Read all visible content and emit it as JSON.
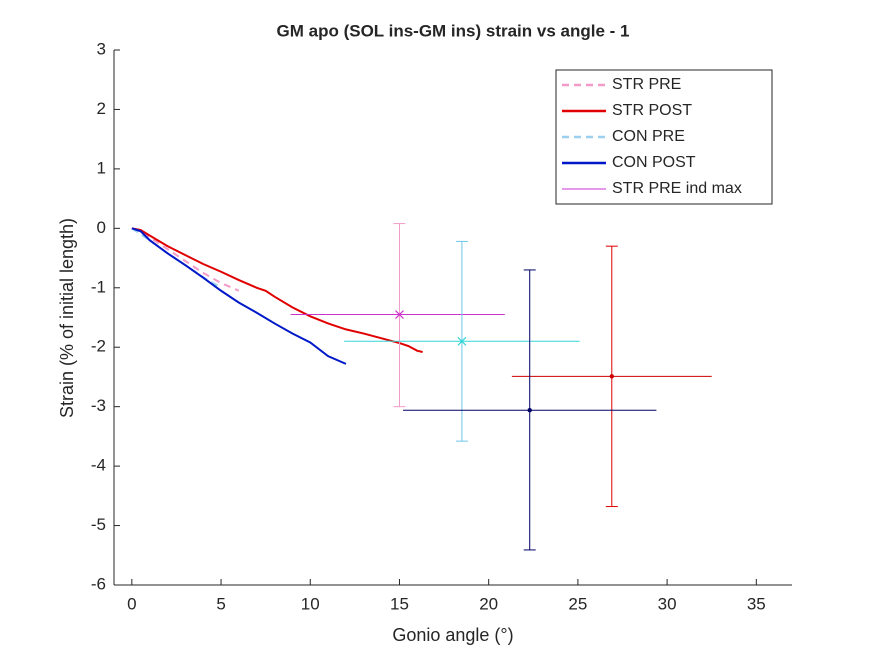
{
  "chart_data": {
    "type": "line",
    "title": "GM apo (SOL ins-GM ins) strain vs angle - 1",
    "xlabel": "Gonio angle (°)",
    "ylabel": "Strain (% of initial length)",
    "xlim": [
      -1,
      37
    ],
    "ylim": [
      -6,
      3
    ],
    "xticks": [
      0,
      5,
      10,
      15,
      20,
      25,
      30,
      35
    ],
    "yticks": [
      -6,
      -5,
      -4,
      -3,
      -2,
      -1,
      0,
      1,
      2,
      3
    ],
    "legend": "top-right",
    "series": [
      {
        "name": "STR PRE",
        "color": "#f29bc8",
        "dash": true,
        "x": [
          0,
          1,
          2,
          3,
          4,
          5,
          6
        ],
        "values": [
          0,
          -0.15,
          -0.35,
          -0.55,
          -0.75,
          -0.92,
          -1.05
        ]
      },
      {
        "name": "STR POST",
        "color": "#e00000",
        "dash": false,
        "x": [
          0,
          0.5,
          1,
          2,
          3,
          4,
          5,
          6,
          7,
          7.5,
          8,
          9,
          10,
          11,
          12,
          13,
          14,
          15,
          15.5,
          16,
          16.3
        ],
        "values": [
          0,
          -0.03,
          -0.12,
          -0.3,
          -0.45,
          -0.6,
          -0.73,
          -0.87,
          -1.0,
          -1.05,
          -1.15,
          -1.33,
          -1.48,
          -1.6,
          -1.7,
          -1.77,
          -1.85,
          -1.93,
          -1.98,
          -2.06,
          -2.08
        ]
      },
      {
        "name": "CON PRE",
        "color": "#9dd0ee",
        "dash": true,
        "x": [
          0,
          1,
          2,
          3,
          4,
          5
        ],
        "values": [
          0,
          -0.2,
          -0.42,
          -0.62,
          -0.82,
          -1.0
        ]
      },
      {
        "name": "CON POST",
        "color": "#0018c8",
        "dash": false,
        "x": [
          0,
          0.5,
          1,
          2,
          3,
          4,
          5,
          6,
          7,
          8,
          9,
          10,
          11,
          12
        ],
        "values": [
          0,
          -0.05,
          -0.2,
          -0.42,
          -0.62,
          -0.83,
          -1.05,
          -1.25,
          -1.42,
          -1.6,
          -1.77,
          -1.92,
          -2.15,
          -2.28
        ]
      }
    ],
    "error_points": [
      {
        "name": "STR PRE ind max",
        "color": "#f29bc8",
        "hcolor": "#cc33cc",
        "marker": "x",
        "x": 15,
        "y": -1.45,
        "xlow": 8.9,
        "xhigh": 20.9,
        "ylow": -3.0,
        "yhigh": 0.08
      },
      {
        "color": "#6ec6e8",
        "hcolor": "#33d6d6",
        "marker": "x",
        "x": 18.5,
        "y": -1.9,
        "xlow": 11.9,
        "xhigh": 25.1,
        "ylow": -3.58,
        "yhigh": -0.22
      },
      {
        "color": "#e00000",
        "hcolor": "#cc0000",
        "marker": "dot",
        "x": 26.9,
        "y": -2.49,
        "xlow": 21.3,
        "xhigh": 32.5,
        "ylow": -4.68,
        "yhigh": -0.3
      },
      {
        "color": "#000066",
        "hcolor": "#000066",
        "marker": "dot",
        "x": 22.3,
        "y": -3.06,
        "xlow": 15.2,
        "xhigh": 29.4,
        "ylow": -5.41,
        "yhigh": -0.7
      }
    ]
  }
}
